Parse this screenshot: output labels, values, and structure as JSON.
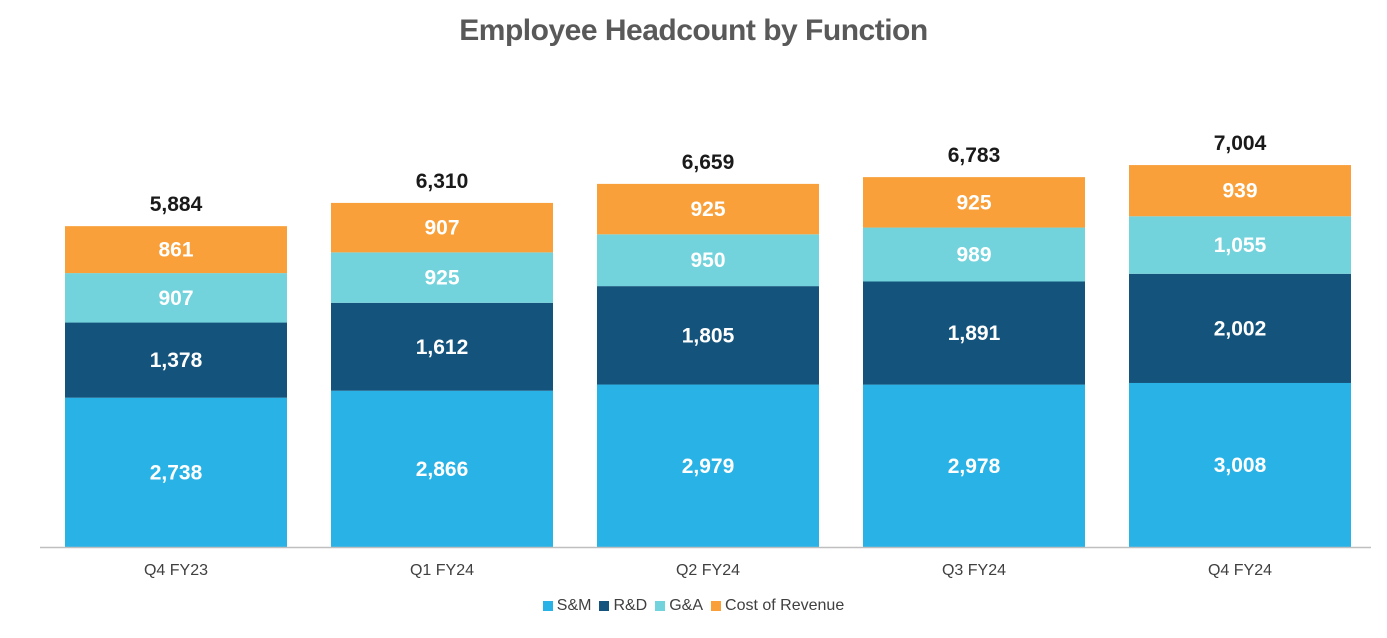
{
  "chart_data": {
    "type": "bar",
    "stacked": true,
    "title": "Employee Headcount by Function",
    "categories": [
      "Q4 FY23",
      "Q1 FY24",
      "Q2 FY24",
      "Q3 FY24",
      "Q4 FY24"
    ],
    "series": [
      {
        "name": "S&M",
        "color": "#29B2E6",
        "values": [
          2738,
          2866,
          2979,
          2978,
          3008
        ],
        "labels": [
          "2,738",
          "2,866",
          "2,979",
          "2,978",
          "3,008"
        ]
      },
      {
        "name": "R&D",
        "color": "#13537C",
        "values": [
          1378,
          1612,
          1805,
          1891,
          2002
        ],
        "labels": [
          "1,378",
          "1,612",
          "1,805",
          "1,891",
          "2,002"
        ]
      },
      {
        "name": "G&A",
        "color": "#72D3DC",
        "values": [
          907,
          925,
          950,
          989,
          1055
        ],
        "labels": [
          "907",
          "925",
          "950",
          "989",
          "1,055"
        ]
      },
      {
        "name": "Cost of Revenue",
        "color": "#F9A03A",
        "values": [
          861,
          907,
          925,
          925,
          939
        ],
        "labels": [
          "861",
          "907",
          "925",
          "925",
          "939"
        ]
      }
    ],
    "totals": [
      5884,
      6310,
      6659,
      6783,
      7004
    ],
    "total_labels": [
      "5,884",
      "6,310",
      "6,659",
      "6,783",
      "7,004"
    ],
    "xlabel": "",
    "ylabel": "",
    "ylim": [
      0,
      7400
    ],
    "grid": false,
    "legend_position": "bottom"
  }
}
